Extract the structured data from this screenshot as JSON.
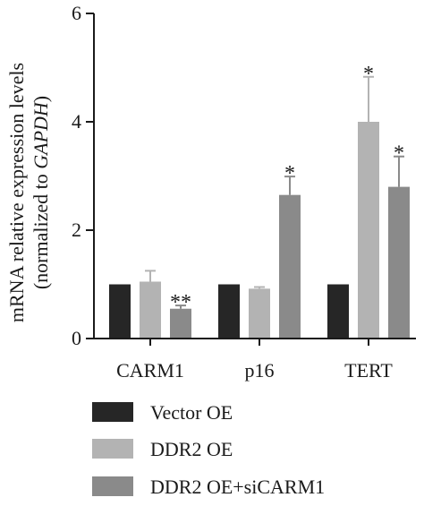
{
  "chart_data": {
    "type": "bar",
    "title": "",
    "ylabel_line1": "mRNA relative expression levels",
    "ylabel_line2_prefix": "(normalized to ",
    "ylabel_line2_italic": "GAPDH",
    "ylabel_line2_suffix": ")",
    "xlabel": "",
    "ylim": [
      0,
      6
    ],
    "yticks": [
      "0",
      "2",
      "4",
      "6"
    ],
    "categories": [
      "CARM1",
      "p16",
      "TERT"
    ],
    "legend_position": "bottom",
    "series": [
      {
        "name": "Vector OE",
        "color": "#262626",
        "values": [
          1.0,
          1.0,
          1.0
        ],
        "errors": [
          0,
          0,
          0
        ],
        "annotations": [
          "",
          "",
          ""
        ]
      },
      {
        "name": "DDR2 OE",
        "color": "#b3b3b3",
        "values": [
          1.05,
          0.92,
          4.0
        ],
        "errors": [
          0.2,
          0.03,
          0.83
        ],
        "annotations": [
          "",
          "",
          "*"
        ]
      },
      {
        "name": "DDR2 OE+siCARM1",
        "color": "#8a8a8a",
        "values": [
          0.55,
          2.65,
          2.8
        ],
        "errors": [
          0.06,
          0.34,
          0.56
        ],
        "annotations": [
          "**",
          "*",
          "*"
        ]
      }
    ]
  }
}
